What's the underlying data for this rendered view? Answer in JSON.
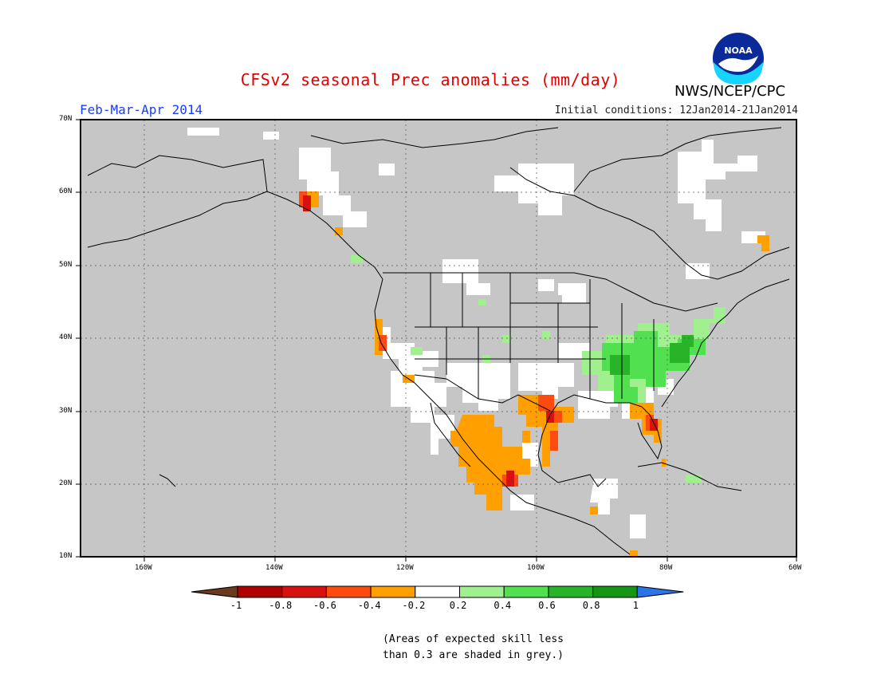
{
  "title": "CFSv2 seasonal Prec anomalies (mm/day)",
  "period": "Feb-Mar-Apr 2014",
  "initial_conditions": "Initial conditions: 12Jan2014-21Jan2014",
  "agency": "NWS/NCEP/CPC",
  "logo_text": "NOAA",
  "lat_labels": [
    "70N",
    "60N",
    "50N",
    "40N",
    "30N",
    "20N",
    "10N"
  ],
  "lon_labels": [
    "160W",
    "140W",
    "120W",
    "100W",
    "80W",
    "60W"
  ],
  "colorbar": {
    "labels": [
      "-1",
      "-0.8",
      "-0.6",
      "-0.4",
      "-0.2",
      "0.2",
      "0.4",
      "0.6",
      "0.8",
      "1"
    ],
    "colors": [
      "#6b3a1e",
      "#b00000",
      "#d81010",
      "#ff4a10",
      "#ffa000",
      "#ffffff",
      "#a0f090",
      "#50e050",
      "#28b428",
      "#149614",
      "#2a73e8"
    ]
  },
  "note_line1": "(Areas of expected skill less",
  "note_line2": "than 0.3 are shaded in grey.)",
  "map_colors": {
    "grey": "#c6c6c6",
    "white": "#ffffff",
    "orange": "#ffa000",
    "red_orange": "#ff4a10",
    "red": "#d81010",
    "dark_red": "#b00000",
    "light_green": "#a0f090",
    "green": "#50e050",
    "dark_green": "#28b428"
  }
}
